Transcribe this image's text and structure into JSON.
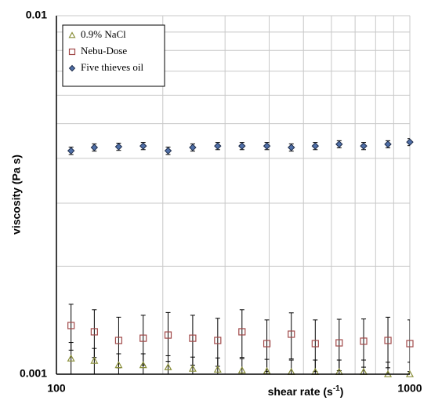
{
  "chart_data": {
    "type": "scatter",
    "ylabel": "viscosity (Pa s)",
    "xlabel": [
      "shear rate (s",
      "-1",
      ")"
    ],
    "xlog": true,
    "ylog": true,
    "grid": true,
    "legend": "top-left",
    "xlim": [
      100,
      1000
    ],
    "ylim": [
      0.001,
      0.01
    ],
    "xticks": [
      100,
      1000
    ],
    "yticks": [
      0.001,
      0.01
    ],
    "xminorticks": [
      200,
      300,
      400,
      500,
      600,
      700,
      800,
      900
    ],
    "yminorticks": [
      0.002,
      0.003,
      0.004,
      0.005,
      0.006,
      0.007,
      0.008,
      0.009
    ],
    "x": [
      110,
      128,
      150,
      176,
      207,
      243,
      286,
      335,
      394,
      462,
      540,
      631,
      740,
      867,
      1000
    ],
    "series": [
      {
        "name": "0.9% NaCl",
        "color": "#8a8f3a",
        "marker": "triangle",
        "values": [
          0.001106,
          0.00109,
          0.00106,
          0.00106,
          0.001046,
          0.001036,
          0.00103,
          0.001025,
          0.00102,
          0.001015,
          0.001015,
          0.001015,
          0.001015,
          0.001,
          0.001
        ],
        "errors": [
          0.00012,
          9e-05,
          8e-05,
          8e-05,
          8e-05,
          8e-05,
          8e-05,
          8e-05,
          8e-05,
          8e-05,
          8e-05,
          8e-05,
          8e-05,
          8e-05,
          8e-05
        ]
      },
      {
        "name": "Nebu-Dose",
        "color": "#a04848",
        "marker": "square",
        "values": [
          0.001367,
          0.001313,
          0.001242,
          0.00126,
          0.001286,
          0.00126,
          0.001242,
          0.001313,
          0.001217,
          0.001293,
          0.001217,
          0.001223,
          0.001236,
          0.001242,
          0.001217
        ],
        "errors": [
          0.0002,
          0.0002,
          0.0002,
          0.0002,
          0.0002,
          0.0002,
          0.00019,
          0.0002,
          0.0002,
          0.00019,
          0.0002,
          0.0002,
          0.00019,
          0.0002,
          0.0002
        ]
      },
      {
        "name": "Five thieves oil",
        "color": "#4f6fa8",
        "marker": "diamond",
        "values": [
          0.0042,
          0.00429,
          0.00431,
          0.00433,
          0.0042,
          0.00429,
          0.00433,
          0.00433,
          0.00433,
          0.00429,
          0.00433,
          0.00438,
          0.00433,
          0.00438,
          0.00444
        ],
        "errors": [
          0.0001,
          0.0001,
          0.0001,
          0.0001,
          0.0001,
          0.0001,
          0.0001,
          0.0001,
          0.0001,
          0.0001,
          0.0001,
          0.0001,
          0.0001,
          0.0001,
          0.0001
        ]
      }
    ]
  }
}
